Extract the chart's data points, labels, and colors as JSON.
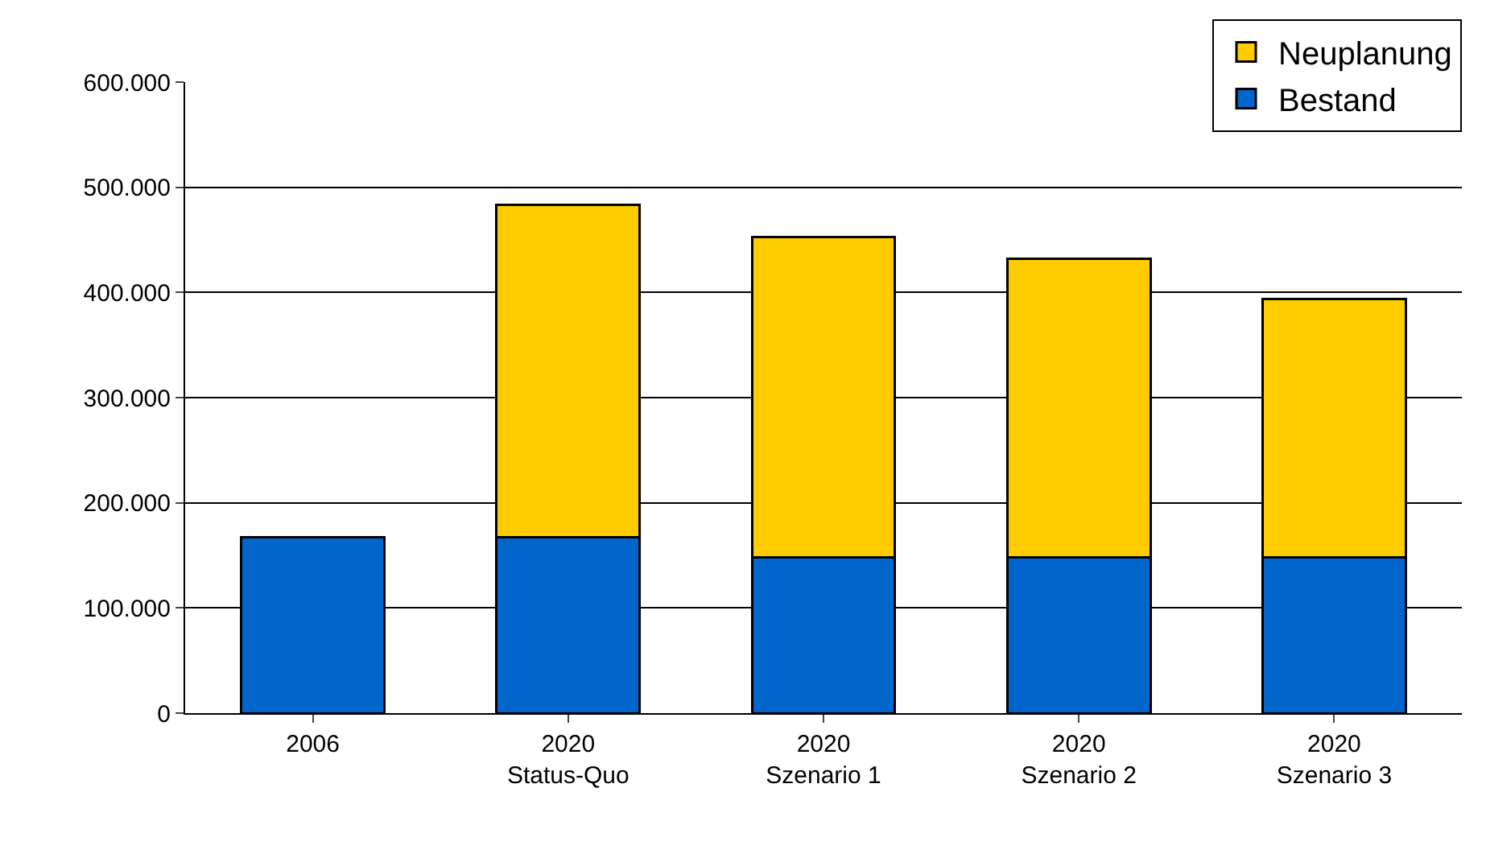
{
  "chart_data": {
    "type": "bar",
    "stacked": true,
    "categories": [
      "2006",
      "2020\nStatus-Quo",
      "2020\nSzenario 1",
      "2020\nSzenario 2",
      "2020\nSzenario 3"
    ],
    "series": [
      {
        "name": "Bestand",
        "color": "#0066cc",
        "values": [
          167000,
          167000,
          148000,
          148000,
          148000
        ]
      },
      {
        "name": "Neuplanung",
        "color": "#ffcc00",
        "values": [
          null,
          316000,
          305000,
          284000,
          246000
        ]
      }
    ],
    "ylim": [
      0,
      600000
    ],
    "yticks": [
      {
        "value": 0,
        "label": "0"
      },
      {
        "value": 100000,
        "label": "100.000"
      },
      {
        "value": 200000,
        "label": "200.000"
      },
      {
        "value": 300000,
        "label": "300.000"
      },
      {
        "value": 400000,
        "label": "400.000"
      },
      {
        "value": 500000,
        "label": "500.000"
      },
      {
        "value": 600000,
        "label": "600.000"
      }
    ],
    "grid": "y",
    "legend": "top right"
  }
}
